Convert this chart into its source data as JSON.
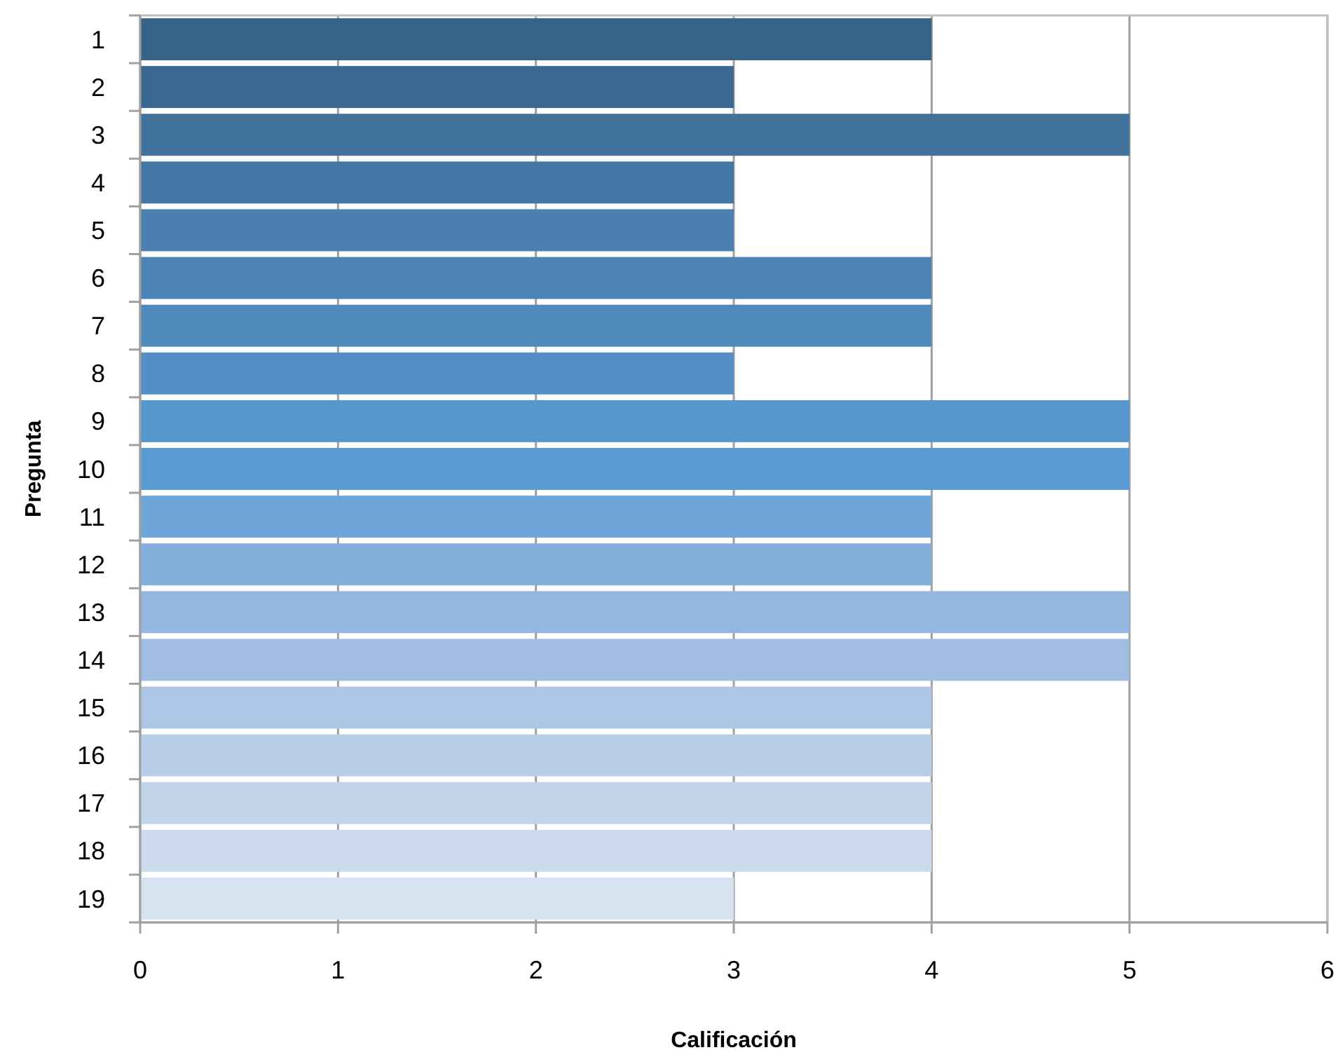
{
  "chart_data": {
    "type": "bar",
    "orientation": "horizontal",
    "xlabel": "Calificación",
    "ylabel": "Pregunta",
    "categories": [
      "1",
      "2",
      "3",
      "4",
      "5",
      "6",
      "7",
      "8",
      "9",
      "10",
      "11",
      "12",
      "13",
      "14",
      "15",
      "16",
      "17",
      "18",
      "19"
    ],
    "values": [
      4,
      3,
      5,
      3,
      3,
      4,
      4,
      3,
      5,
      5,
      4,
      4,
      5,
      5,
      4,
      4,
      4,
      4,
      3
    ],
    "colors": [
      "#366386",
      "#3b6890",
      "#40729c",
      "#4577a5",
      "#4a7fb0",
      "#4d84b7",
      "#508abd",
      "#538fc4",
      "#5897cd",
      "#5b9bd5",
      "#6fa5d9",
      "#82afdc",
      "#94b6df",
      "#a1bde2",
      "#adc6e5",
      "#b8cde8",
      "#c3d3ea",
      "#ccdaed",
      "#d7e2f1"
    ],
    "xlim": [
      0,
      6
    ],
    "xticks": [
      0,
      1,
      2,
      3,
      4,
      5,
      6
    ],
    "grid": "x"
  }
}
